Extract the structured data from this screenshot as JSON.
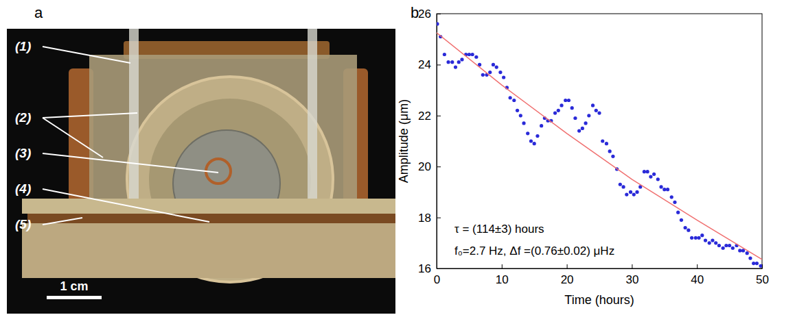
{
  "photo": {
    "panel_letter": "a",
    "labels": [
      "(1)",
      "(2)",
      "(3)",
      "(4)",
      "(5)"
    ],
    "scale_bar": "1 cm"
  },
  "chart_data": {
    "type": "scatter",
    "panel_letter": "b",
    "x_label": "Time (hours)",
    "y_label": "Amplitude (μm)",
    "annotations": [
      "τ = (114±3) hours",
      "f₀=2.7 Hz, Δf =(0.76±0.02) μHz"
    ],
    "xlim": [
      0,
      50
    ],
    "xticks": [
      0,
      10,
      20,
      30,
      40,
      50
    ],
    "ylim": [
      16,
      26
    ],
    "yticks": [
      16,
      18,
      20,
      22,
      24,
      26
    ],
    "grid": false,
    "series": [
      {
        "type": "scatter",
        "color": "#2a2ad8",
        "marker": "circle",
        "x": [
          0.1,
          0.6,
          1.2,
          1.8,
          2.4,
          2.9,
          3.4,
          3.9,
          4.5,
          5.0,
          5.5,
          6.1,
          6.6,
          7.1,
          7.7,
          8.2,
          8.7,
          9.2,
          9.8,
          10.3,
          10.8,
          11.3,
          11.9,
          12.4,
          12.9,
          13.4,
          14.0,
          14.5,
          15.0,
          15.5,
          16.1,
          16.6,
          17.1,
          17.6,
          18.2,
          18.7,
          19.2,
          19.8,
          20.3,
          20.8,
          21.3,
          21.9,
          22.4,
          22.9,
          23.4,
          24.0,
          24.5,
          25.0,
          25.5,
          26.1,
          26.6,
          27.1,
          27.7,
          28.2,
          28.7,
          29.2,
          29.8,
          30.3,
          30.8,
          31.3,
          31.9,
          32.4,
          32.9,
          33.4,
          34.0,
          34.5,
          35.0,
          35.5,
          36.1,
          36.6,
          37.1,
          37.6,
          38.2,
          38.7,
          39.2,
          39.8,
          40.3,
          40.8,
          41.3,
          41.9,
          42.4,
          42.9,
          43.4,
          44.0,
          44.5,
          45.0,
          45.5,
          46.1,
          46.6,
          47.1,
          47.7,
          48.2,
          48.7,
          49.2,
          49.8
        ],
        "values": [
          25.6,
          25.1,
          24.4,
          24.1,
          24.1,
          23.9,
          24.1,
          24.2,
          24.4,
          24.4,
          24.4,
          24.3,
          24.0,
          23.6,
          23.6,
          23.7,
          24.0,
          23.9,
          23.7,
          23.5,
          23.1,
          22.7,
          22.6,
          22.2,
          22.0,
          21.7,
          21.3,
          21.0,
          20.9,
          21.2,
          21.6,
          21.9,
          21.8,
          21.8,
          22.1,
          22.2,
          22.4,
          22.6,
          22.6,
          22.3,
          21.9,
          21.4,
          21.5,
          21.7,
          22.0,
          22.4,
          22.2,
          22.1,
          21.0,
          20.9,
          20.6,
          20.4,
          19.9,
          19.3,
          19.2,
          18.9,
          19.0,
          18.9,
          19.0,
          19.2,
          19.8,
          19.8,
          19.6,
          19.7,
          19.5,
          19.2,
          19.1,
          19.1,
          18.8,
          18.6,
          18.2,
          17.9,
          17.6,
          17.5,
          17.2,
          17.2,
          17.2,
          17.3,
          17.1,
          17.0,
          17.1,
          17.0,
          16.9,
          16.8,
          16.9,
          16.9,
          16.8,
          16.9,
          16.7,
          16.7,
          16.6,
          16.4,
          16.2,
          16.2,
          16.1
        ]
      },
      {
        "type": "line",
        "color": "#f07070",
        "line_style": "solid",
        "x": [
          0,
          10,
          20,
          30,
          40,
          50
        ],
        "values": [
          25.25,
          23.2,
          21.3,
          19.5,
          17.9,
          16.35
        ]
      }
    ]
  }
}
